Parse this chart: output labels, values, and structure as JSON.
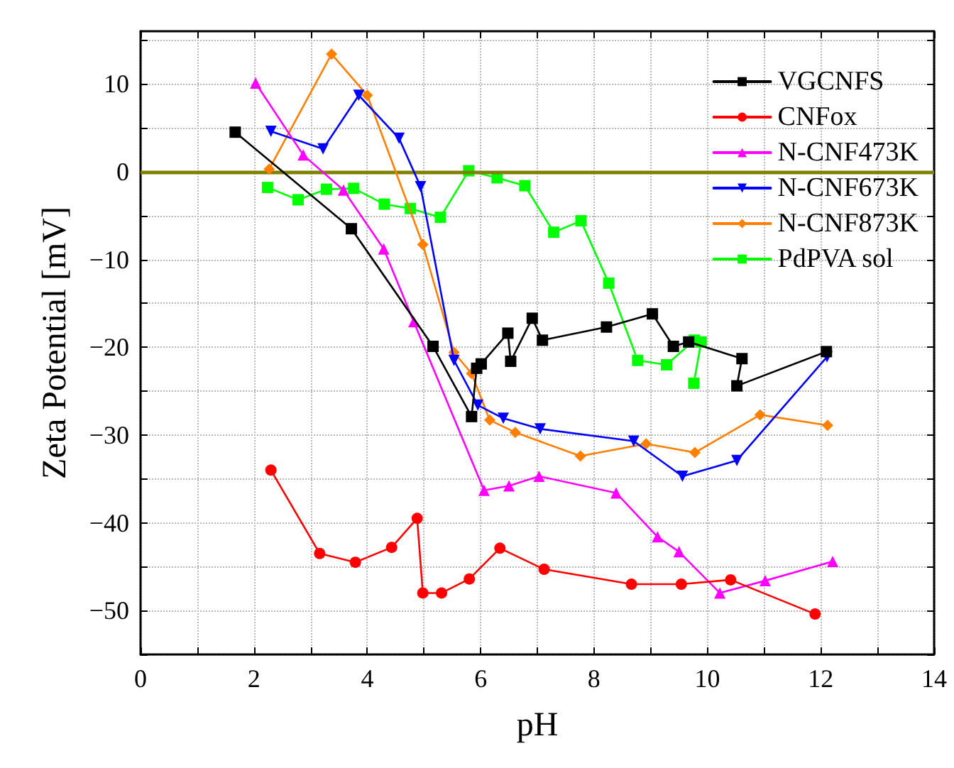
{
  "chart_data": {
    "type": "line",
    "xlabel": "pH",
    "ylabel": "Zeta Potential [mV]",
    "xlim": [
      0,
      14
    ],
    "xticks": [
      0,
      2,
      4,
      6,
      8,
      10,
      12,
      14
    ],
    "ylim": [
      -55,
      16
    ],
    "yticks": [
      -50,
      -40,
      -30,
      -20,
      -10,
      0,
      10
    ],
    "grid": true,
    "legend": "top right",
    "line_style": "solid",
    "ref_lines": [
      {
        "axis": "y",
        "value": 0,
        "color": "#808000",
        "line_style": "solid"
      }
    ],
    "series": [
      {
        "name": "VGCNFS",
        "color": "#000000",
        "marker": "square",
        "x": [
          1.67,
          3.72,
          5.16,
          5.84,
          5.93,
          6.01,
          6.48,
          6.53,
          6.91,
          7.09,
          8.22,
          9.03,
          9.4,
          9.67,
          10.61,
          10.52,
          12.1
        ],
        "values": [
          4.5,
          -6.5,
          -19.9,
          -27.9,
          -22.4,
          -21.9,
          -18.4,
          -21.6,
          -16.7,
          -19.2,
          -17.7,
          -16.2,
          -19.9,
          -19.4,
          -21.3,
          -24.4,
          -20.5
        ]
      },
      {
        "name": "CNFox",
        "color": "#ff0000",
        "marker": "circle",
        "x": [
          2.3,
          3.16,
          3.79,
          4.43,
          4.88,
          4.98,
          5.31,
          5.8,
          6.34,
          7.12,
          8.66,
          9.54,
          10.41,
          11.9
        ],
        "values": [
          -34.0,
          -43.5,
          -44.5,
          -42.8,
          -39.5,
          -48.0,
          -48.0,
          -46.4,
          -42.9,
          -45.3,
          -47.0,
          -47.0,
          -46.5,
          -50.4
        ]
      },
      {
        "name": "N-CNF473K",
        "color": "#ff00ff",
        "marker": "triangle",
        "x": [
          2.03,
          2.87,
          3.58,
          4.29,
          4.82,
          6.06,
          6.5,
          7.03,
          8.39,
          9.12,
          9.5,
          10.22,
          11.02,
          12.21
        ],
        "values": [
          10.1,
          1.9,
          -2.1,
          -8.8,
          -17.1,
          -36.3,
          -35.8,
          -34.7,
          -36.6,
          -41.6,
          -43.3,
          -48.0,
          -46.6,
          -44.4
        ]
      },
      {
        "name": "N-CNF673K",
        "color": "#0000ff",
        "marker": "triangle-down",
        "x": [
          2.3,
          3.22,
          3.85,
          4.56,
          4.94,
          5.53,
          5.95,
          6.4,
          7.05,
          8.7,
          9.56,
          10.52,
          12.11
        ],
        "values": [
          4.6,
          2.6,
          8.7,
          3.8,
          -1.7,
          -21.5,
          -26.6,
          -28.1,
          -29.3,
          -30.7,
          -34.7,
          -32.9,
          -21.1
        ]
      },
      {
        "name": "N-CNF873K",
        "color": "#ff8000",
        "marker": "diamond",
        "x": [
          2.27,
          3.37,
          4.0,
          4.98,
          5.53,
          5.84,
          6.16,
          6.61,
          7.76,
          8.92,
          9.78,
          10.93,
          12.12
        ],
        "values": [
          0.3,
          13.4,
          8.7,
          -8.3,
          -20.6,
          -23.0,
          -28.3,
          -29.7,
          -32.4,
          -31.0,
          -32.0,
          -27.7,
          -28.9
        ]
      },
      {
        "name": "PdPVA sol",
        "color": "#00ff00",
        "marker": "square",
        "x": [
          2.24,
          2.78,
          3.28,
          3.76,
          4.3,
          4.76,
          5.29,
          5.79,
          6.29,
          6.78,
          7.29,
          7.77,
          8.26,
          8.77,
          9.28,
          9.77,
          9.89,
          9.76
        ],
        "values": [
          -1.8,
          -3.2,
          -2.0,
          -1.9,
          -3.7,
          -4.2,
          -5.2,
          0.1,
          -0.7,
          -1.6,
          -6.9,
          -5.6,
          -12.7,
          -21.5,
          -22.0,
          -19.2,
          -19.4,
          -24.1
        ]
      }
    ]
  }
}
